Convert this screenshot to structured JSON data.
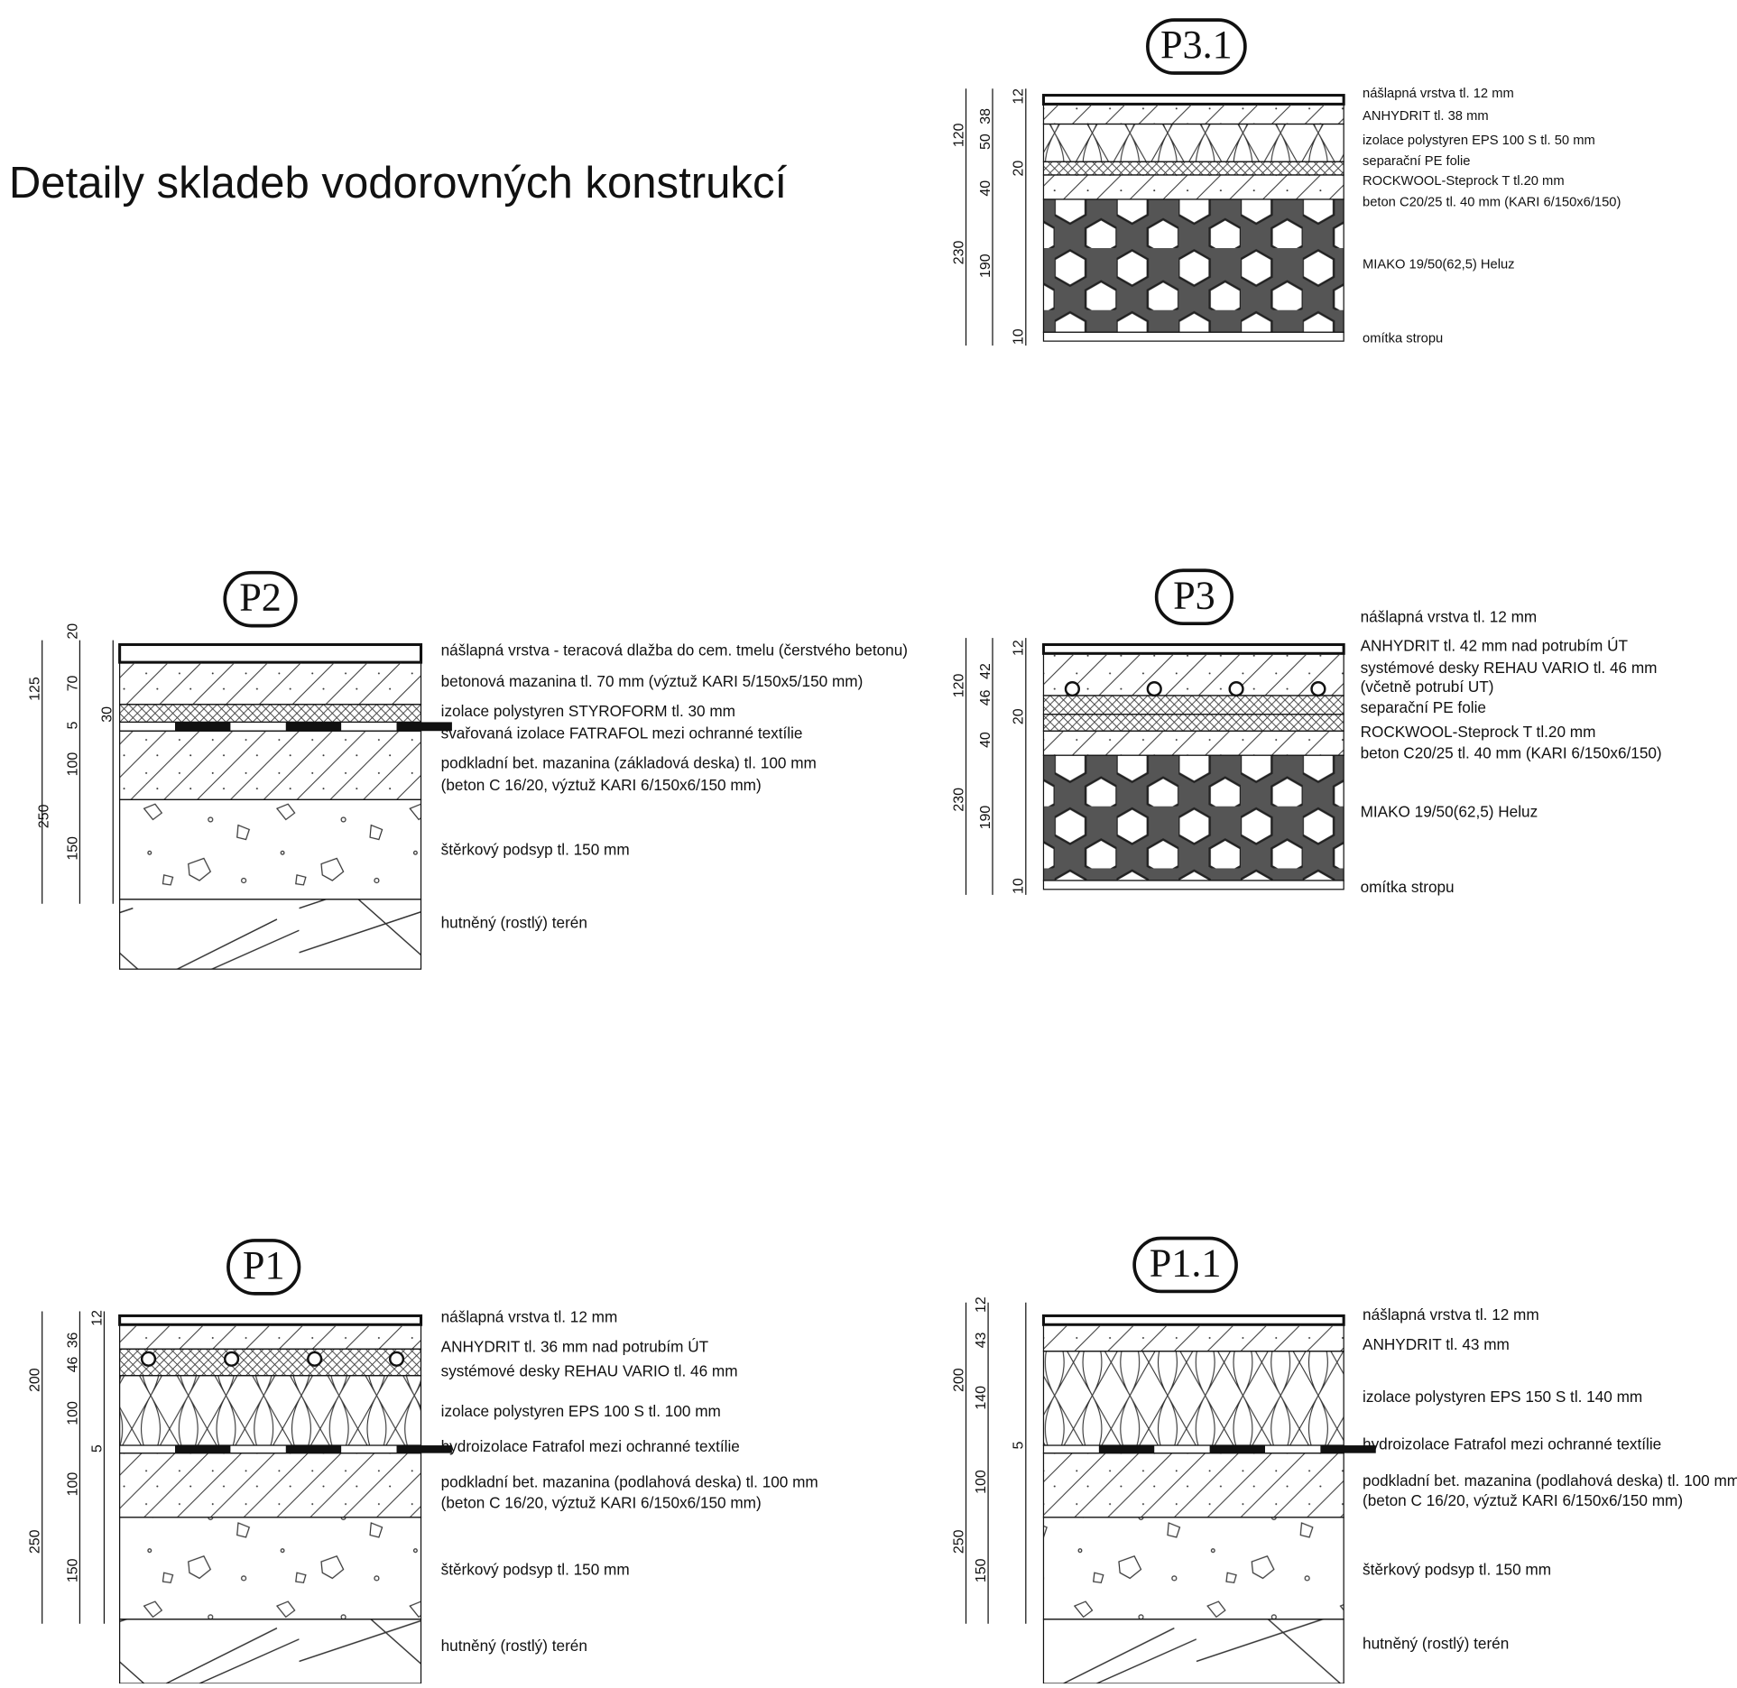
{
  "title": "Detaily skladeb vodorovných konstrukcí",
  "details": [
    {
      "label": "P3.1",
      "layers": [
        "nášlapná vrstva tl. 12 mm",
        "ANHYDRIT tl. 38 mm",
        "izolace polystyren EPS 100 S  tl. 50 mm",
        "separační PE folie",
        "ROCKWOOL-Steprock T tl.20 mm",
        "beton C20/25 tl. 40 mm (KARI 6/150x6/150)",
        "MIAKO 19/50(62,5) Heluz",
        "omítka stropu"
      ],
      "dims": [
        "12",
        "38",
        "50",
        "20",
        "120",
        "40",
        "230",
        "190",
        "10"
      ]
    },
    {
      "label": "P2",
      "layers": [
        "nášlapná vrstva - teracová dlažba do cem. tmelu (čerstvého betonu)",
        "betonová mazanina tl. 70 mm (výztuž KARI 5/150x5/150 mm)",
        "izolace polystyren STYROFORM tl. 30 mm",
        "svařovaná izolace FATRAFOL mezi ochranné textílie",
        "podkladní bet. mazanina (základová deska) tl. 100 mm",
        "(beton C 16/20, výztuž KARI 6/150x6/150 mm)",
        "štěrkový podsyp tl. 150 mm",
        "hutněný (rostlý) terén"
      ],
      "dims": [
        "20",
        "125",
        "70",
        "5",
        "30",
        "100",
        "250",
        "150"
      ]
    },
    {
      "label": "P3",
      "layers": [
        "nášlapná vrstva tl. 12 mm",
        "ANHYDRIT tl. 42 mm nad potrubím ÚT",
        "systémové desky REHAU VARIO tl. 46 mm",
        "(včetně potrubí UT)",
        "separační PE folie",
        "ROCKWOOL-Steprock T tl.20 mm",
        "beton C20/25 tl. 40 mm (KARI 6/150x6/150)",
        "MIAKO 19/50(62,5) Heluz",
        "omítka stropu"
      ],
      "dims": [
        "12",
        "42",
        "46",
        "120",
        "20",
        "40",
        "230",
        "190",
        "10"
      ]
    },
    {
      "label": "P1",
      "layers": [
        "nášlapná vrstva tl. 12 mm",
        "ANHYDRIT tl. 36 mm nad potrubím ÚT",
        "systémové desky REHAU VARIO tl. 46 mm",
        "izolace polystyren EPS 100 S  tl. 100 mm",
        "hydroizolace Fatrafol mezi ochranné textílie",
        "podkladní bet. mazanina (podlahová deska) tl. 100 mm",
        "(beton C 16/20, výztuž KARI 6/150x6/150 mm)",
        "štěrkový podsyp tl. 150 mm",
        "hutněný (rostlý) terén"
      ],
      "dims": [
        "12",
        "36",
        "46",
        "200",
        "100",
        "5",
        "100",
        "250",
        "150"
      ]
    },
    {
      "label": "P1.1",
      "layers": [
        "nášlapná vrstva tl. 12 mm",
        "ANHYDRIT tl. 43 mm",
        "izolace polystyren EPS 150 S tl. 140 mm",
        "hydroizolace Fatrafol mezi ochranné textílie",
        "podkladní bet. mazanina (podlahová deska) tl. 100 mm",
        "(beton C 16/20, výztuž KARI 6/150x6/150 mm)",
        "štěrkový podsyp tl. 150 mm",
        "hutněný (rostlý) terén"
      ],
      "dims": [
        "12",
        "43",
        "200",
        "140",
        "5",
        "100",
        "250",
        "150"
      ]
    }
  ]
}
